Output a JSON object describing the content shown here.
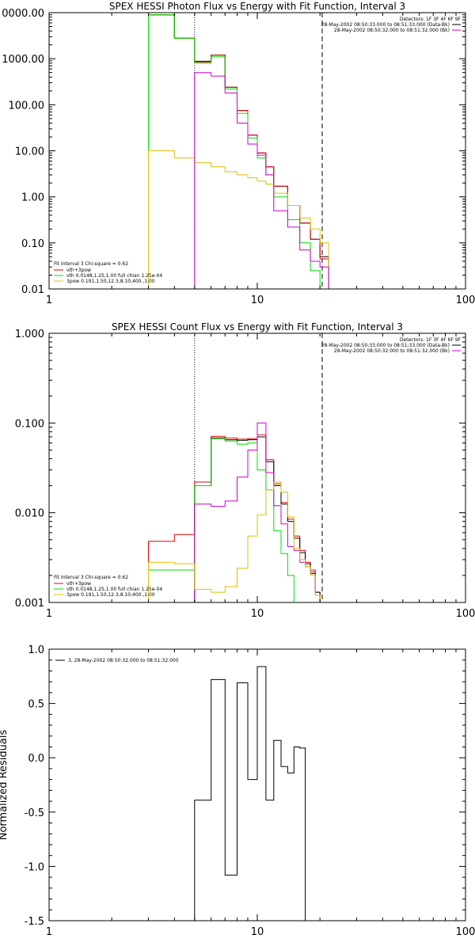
{
  "chart_data": [
    {
      "type": "line",
      "title": "SPEX HESSI Photon Flux vs Energy with Fit Function, Interval 3",
      "xscale": "log",
      "yscale": "log",
      "xlim": [
        1,
        100
      ],
      "ylim": [
        0.01,
        10000
      ],
      "x_tick_labels": [
        "1",
        "10",
        "100"
      ],
      "y_tick_labels": [
        "0.01",
        "0.10",
        "1.00",
        "10.00",
        "100.00",
        "1000.00",
        "0000.00"
      ],
      "ylabel": "",
      "xlabel": "",
      "legend_top": {
        "placement": "top-right",
        "header": "Detectors: 1F 3F 4F 6F 9F",
        "entries": [
          {
            "label": "28-May-2002 08:50:33.000 to 08:51:33.000 (Data-Bk)",
            "color": "#000000"
          },
          {
            "label": "28-May-2002 08:50:32.000 to 08:51:32.000 (Bk)",
            "color": "#d000d0"
          }
        ]
      },
      "legend_bottom": {
        "placement": "bottom-left",
        "header": "Fit Interval 3   Chi-square = 0.62",
        "entries": [
          {
            "label": "vth+3pow",
            "color": "#e00000"
          },
          {
            "label": "vth 0.0148,1.25,1.00  full chian 1.25e-04",
            "color": "#00e000"
          },
          {
            "label": "3pow 0.191,1.50,12.3,8.10,400.,1.00",
            "color": "#e0c000"
          }
        ]
      },
      "vlines": [
        {
          "x": 5.0,
          "style": "dotted"
        },
        {
          "x": 20.5,
          "style": "dashed"
        }
      ],
      "bin_edges": [
        3,
        3.5,
        4,
        4.5,
        5,
        5.5,
        6,
        6.5,
        7,
        7.5,
        8,
        8.5,
        9,
        9.5,
        10,
        10.5,
        11,
        11.5,
        12,
        13,
        14,
        15,
        16,
        17,
        18,
        19,
        20,
        21,
        22,
        23
      ],
      "series": [
        {
          "name": "Data-Bk",
          "color": "#000000",
          "values": [
            9000,
            9000,
            2800,
            2800,
            880,
            880,
            1200,
            1200,
            240,
            240,
            75,
            75,
            22,
            22,
            9,
            9,
            4.5,
            4.5,
            1.7,
            1.7,
            0.65,
            0.65,
            0.27,
            0.27,
            0.12,
            0.12,
            0.05,
            0.05,
            null,
            null
          ]
        },
        {
          "name": "vth+3pow",
          "color": "#e00000",
          "values": [
            9000,
            9000,
            2800,
            2800,
            850,
            850,
            1200,
            1200,
            240,
            240,
            75,
            75,
            22,
            22,
            9,
            9,
            4.5,
            4.5,
            1.7,
            1.7,
            0.65,
            0.65,
            0.27,
            0.27,
            0.12,
            0.12,
            0.045,
            0.045,
            0.01,
            null
          ]
        },
        {
          "name": "vth",
          "color": "#00e000",
          "values": [
            9000,
            9000,
            2800,
            2800,
            800,
            800,
            1100,
            1100,
            220,
            220,
            65,
            65,
            19,
            19,
            7,
            7,
            3,
            3,
            1,
            1,
            0.32,
            0.32,
            0.1,
            0.1,
            0.025,
            0.025,
            null,
            null,
            null,
            null
          ]
        },
        {
          "name": "3pow",
          "color": "#e0c000",
          "values": [
            10,
            10,
            7,
            7,
            5.5,
            5.5,
            4.5,
            4.5,
            3.5,
            3.5,
            3.0,
            3.0,
            2.6,
            2.6,
            2.2,
            2.2,
            1.9,
            1.9,
            1.2,
            1.2,
            0.65,
            0.65,
            0.35,
            0.35,
            0.2,
            0.2,
            0.1,
            0.1,
            0.01,
            null
          ]
        },
        {
          "name": "Bk",
          "color": "#d000d0",
          "values": [
            null,
            null,
            null,
            null,
            500,
            500,
            420,
            420,
            180,
            180,
            40,
            40,
            14,
            14,
            8,
            8,
            3,
            3,
            0.5,
            0.5,
            0.22,
            0.22,
            0.07,
            0.07,
            0.04,
            0.04,
            0.03,
            0.03,
            null,
            null
          ]
        }
      ]
    },
    {
      "type": "line",
      "title": "SPEX HESSI Count Flux vs Energy with Fit Function, Interval 3",
      "xscale": "log",
      "yscale": "log",
      "xlim": [
        1,
        100
      ],
      "ylim": [
        0.001,
        1
      ],
      "x_tick_labels": [
        "1",
        "10",
        "100"
      ],
      "y_tick_labels": [
        "0.001",
        "0.010",
        "0.100",
        "1.000"
      ],
      "ylabel": "",
      "xlabel": "",
      "legend_top": {
        "placement": "top-right",
        "header": "Detectors: 1F 3F 4F 6F 9F",
        "entries": [
          {
            "label": "28-May-2002 08:50:33.000 to 08:51:33.000 (Data-Bk)",
            "color": "#000000"
          },
          {
            "label": "28-May-2002 08:50:32.000 to 08:51:32.000 (Bk)",
            "color": "#d000d0"
          }
        ]
      },
      "legend_bottom": {
        "placement": "bottom-left",
        "header": "Fit Interval 3   Chi-square = 0.62",
        "entries": [
          {
            "label": "vth+3pow",
            "color": "#e00000"
          },
          {
            "label": "vth 0.0148,1.25,1.00  full chian 1.25e-04",
            "color": "#00e000"
          },
          {
            "label": "3pow 0.191,1.50,12.3,8.10,400.,1.00",
            "color": "#e0c000"
          }
        ]
      },
      "vlines": [
        {
          "x": 5.0,
          "style": "dotted"
        },
        {
          "x": 20.5,
          "style": "dashed"
        }
      ],
      "bin_edges": [
        3,
        4,
        5,
        6,
        7,
        8,
        9,
        10,
        11,
        12,
        13,
        14,
        15,
        16,
        17,
        18,
        19,
        20,
        21,
        22
      ],
      "series": [
        {
          "name": "vth+3pow",
          "color": "#e00000",
          "values": [
            0.0048,
            0.0057,
            0.022,
            0.071,
            0.068,
            0.066,
            0.067,
            0.074,
            0.039,
            0.021,
            0.013,
            0.0085,
            0.0055,
            0.0038,
            0.0028,
            0.0022,
            0.0013,
            null,
            null
          ]
        },
        {
          "name": "Data-Bk",
          "color": "#000000",
          "values": [
            null,
            null,
            0.02,
            0.068,
            0.065,
            0.064,
            0.065,
            0.07,
            0.037,
            0.02,
            0.0125,
            0.008,
            0.0052,
            0.0036,
            0.0027,
            0.0021,
            0.0013,
            null,
            null
          ]
        },
        {
          "name": "vth",
          "color": "#00e000",
          "values": [
            0.0023,
            0.0023,
            0.02,
            0.067,
            0.063,
            0.058,
            0.06,
            0.03,
            0.018,
            0.0063,
            0.0035,
            0.002,
            0.001,
            null,
            null,
            null,
            null,
            null,
            null
          ]
        },
        {
          "name": "Bk",
          "color": "#d000d0",
          "values": [
            null,
            null,
            0.0125,
            0.0118,
            0.0135,
            0.025,
            0.05,
            0.1,
            0.028,
            0.012,
            0.0075,
            0.0042,
            0.0038,
            0.0028,
            0.0025,
            0.0023,
            0.0012,
            null,
            null
          ]
        },
        {
          "name": "3pow",
          "color": "#e0c000",
          "values": [
            0.0028,
            0.0027,
            0.0014,
            0.0013,
            0.0015,
            0.0024,
            0.0055,
            0.0095,
            0.018,
            0.022,
            0.017,
            0.009,
            0.004,
            0.003,
            0.0025,
            0.002,
            0.0012,
            null,
            null
          ]
        }
      ]
    },
    {
      "type": "line",
      "title": "",
      "xscale": "log",
      "yscale": "linear",
      "xlim": [
        1,
        100
      ],
      "ylim": [
        -1.5,
        1.0
      ],
      "x_tick_labels": [
        "1",
        "10",
        "100"
      ],
      "y_tick_labels": [
        "-1.5",
        "-1.0",
        "-0.5",
        "0.0",
        "0.5",
        "1.0"
      ],
      "ylabel": "Normalized Residuals",
      "xlabel": "",
      "legend_top": {
        "placement": "top-left",
        "header": "",
        "entries": [
          {
            "label": "3, 28-May-2002 08:50:32.000 to 08:51:32.000",
            "color": "#000000"
          }
        ]
      },
      "bin_edges": [
        5,
        6,
        7,
        8,
        9,
        10,
        11,
        12,
        13,
        14,
        15,
        16,
        17,
        18,
        19,
        20
      ],
      "series": [
        {
          "name": "3, 28-May-2002 08:50:32.000 to 08:51:32.000",
          "color": "#000000",
          "values": [
            -0.39,
            0.72,
            -1.08,
            0.69,
            -0.2,
            0.84,
            -0.39,
            0.16,
            -0.08,
            -0.14,
            0.1,
            0.09,
            null,
            null,
            null
          ]
        }
      ]
    }
  ]
}
